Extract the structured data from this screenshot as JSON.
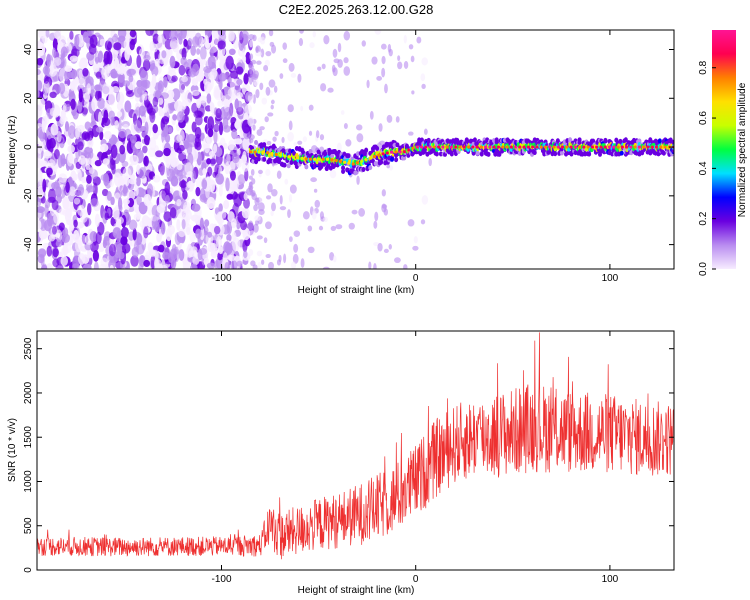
{
  "title": "C2E2.2025.263.12.00.G28",
  "chart_data": [
    {
      "type": "heatmap",
      "xlabel": "Height of straight line (km)",
      "ylabel": "Frequency (Hz)",
      "xlim": [
        -195,
        133
      ],
      "ylim": [
        -50,
        48
      ],
      "xticks": [
        {
          "value": -100,
          "label": "-100"
        },
        {
          "value": 0,
          "label": "0"
        },
        {
          "value": 100,
          "label": "100"
        }
      ],
      "yticks": [
        {
          "value": 40,
          "label": "40"
        },
        {
          "value": 20,
          "label": "20"
        },
        {
          "value": 0,
          "label": "0"
        },
        {
          "value": -20,
          "label": "-20"
        },
        {
          "value": -40,
          "label": "-40"
        }
      ],
      "colorbar": {
        "label": "Normalized spectral amplitude",
        "range": [
          0,
          0.95
        ],
        "ticks": [
          {
            "value": 0.0,
            "label": "0.0"
          },
          {
            "value": 0.2,
            "label": "0.2"
          },
          {
            "value": 0.4,
            "label": "0.4"
          },
          {
            "value": 0.6,
            "label": "0.6"
          },
          {
            "value": 0.8,
            "label": "0.8"
          }
        ],
        "colors": [
          "#f7ecff",
          "#b98cf0",
          "#6a00e0",
          "#0000ff",
          "#00e0ff",
          "#00ff40",
          "#c8ff00",
          "#ffe000",
          "#ff8000",
          "#ff0050",
          "#ff1493"
        ]
      },
      "noise_region_x": [
        -195,
        -85
      ],
      "ridge": {
        "x": [
          -85,
          -78,
          -72,
          -65,
          -55,
          -45,
          -38,
          -32,
          -25,
          -18,
          -12,
          -6,
          0,
          10,
          30,
          50,
          70,
          90,
          110,
          133
        ],
        "freq": [
          -2,
          -2,
          -3,
          -4,
          -5,
          -5,
          -6,
          -7,
          -5,
          -3,
          -2,
          -2,
          0,
          0,
          0,
          0,
          0,
          0,
          0,
          0
        ]
      }
    },
    {
      "type": "line",
      "xlabel": "Height of straight line (km)",
      "ylabel": "SNR (10 * v/v)",
      "xlim": [
        -195,
        133
      ],
      "ylim": [
        0,
        2700
      ],
      "xticks": [
        {
          "value": -100,
          "label": "-100"
        },
        {
          "value": 0,
          "label": "0"
        },
        {
          "value": 100,
          "label": "100"
        }
      ],
      "yticks": [
        {
          "value": 0,
          "label": "0"
        },
        {
          "value": 500,
          "label": "500"
        },
        {
          "value": 1000,
          "label": "1000"
        },
        {
          "value": 1500,
          "label": "1500"
        },
        {
          "value": 2000,
          "label": "2000"
        },
        {
          "value": 2500,
          "label": "2500"
        }
      ],
      "color": "#ee3030",
      "series": [
        {
          "name": "SNR",
          "x": [
            -195,
            -150,
            -100,
            -80,
            -75,
            -70,
            -60,
            -50,
            -40,
            -30,
            -20,
            -10,
            0,
            10,
            20,
            30,
            40,
            50,
            60,
            80,
            100,
            120,
            133
          ],
          "mean": [
            270,
            260,
            270,
            280,
            520,
            380,
            450,
            520,
            560,
            620,
            700,
            820,
            1000,
            1250,
            1420,
            1500,
            1520,
            1560,
            1620,
            1560,
            1540,
            1480,
            1480
          ],
          "spread": [
            110,
            110,
            110,
            130,
            260,
            280,
            280,
            300,
            320,
            350,
            380,
            400,
            420,
            450,
            450,
            460,
            480,
            500,
            520,
            480,
            460,
            440,
            420
          ]
        }
      ]
    }
  ]
}
